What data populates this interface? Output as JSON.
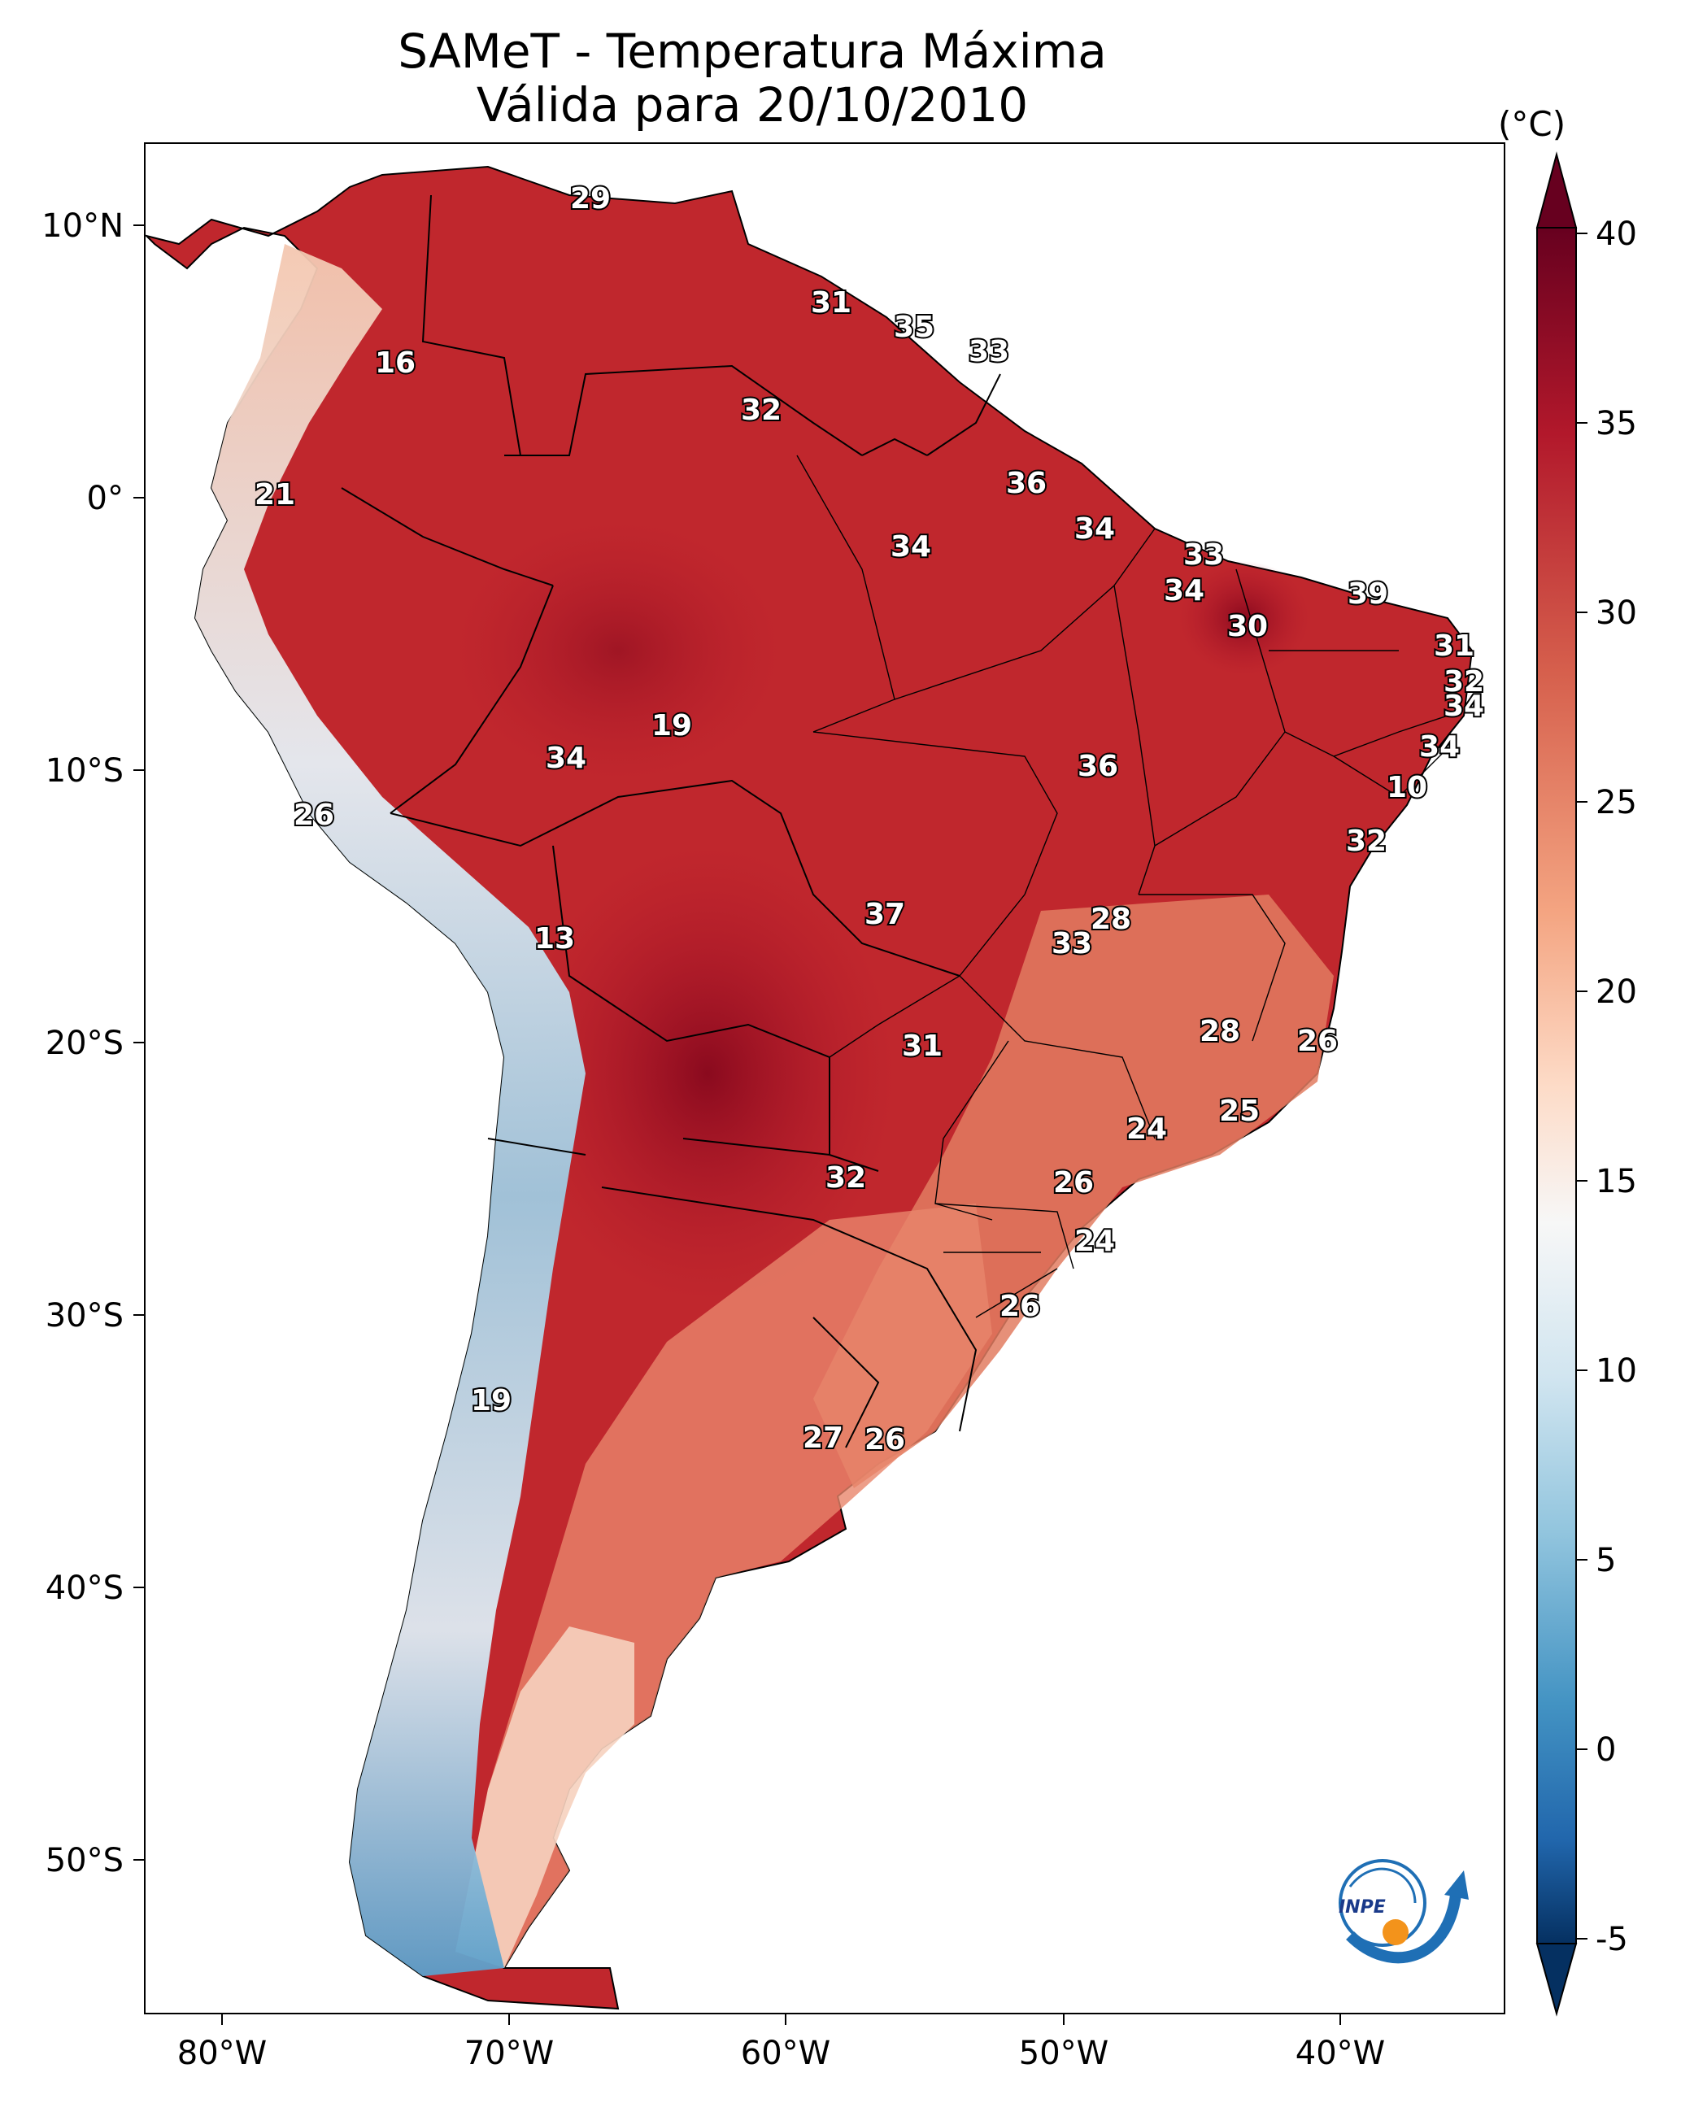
{
  "title_line1": "SAMeT - Temperatura Máxima",
  "title_line2": "Válida para 20/10/2010",
  "colorbar": {
    "unit": "(°C)",
    "ticks": [
      "40",
      "35",
      "30",
      "25",
      "20",
      "15",
      "10",
      "5",
      "0",
      "-5"
    ]
  },
  "axes": {
    "lon_labels": [
      "80°W",
      "70°W",
      "60°W",
      "50°W",
      "40°W"
    ],
    "lat_labels": [
      "10°N",
      "0°",
      "10°S",
      "20°S",
      "30°S",
      "40°S",
      "50°S"
    ]
  },
  "station_values": [
    "29",
    "16",
    "31",
    "35",
    "33",
    "32",
    "21",
    "36",
    "34",
    "34",
    "33",
    "34",
    "39",
    "30",
    "31",
    "32",
    "34",
    "34",
    "10",
    "32",
    "36",
    "34",
    "19",
    "26",
    "37",
    "28",
    "13",
    "33",
    "28",
    "26",
    "31",
    "25",
    "24",
    "32",
    "26",
    "24",
    "26",
    "19",
    "27",
    "26"
  ],
  "logo": {
    "text": "INPE"
  }
}
